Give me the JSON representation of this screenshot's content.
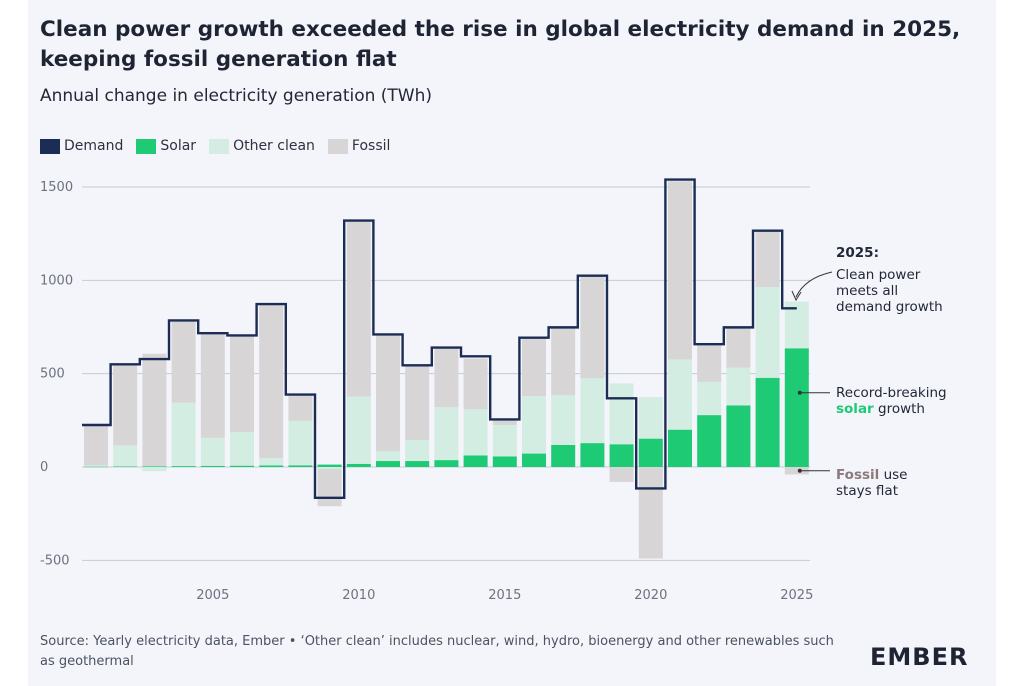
{
  "title": "Clean power growth exceeded the rise in global electricity demand in 2025, keeping fossil generation flat",
  "subtitle": "Annual change in electricity generation (TWh)",
  "legend": {
    "demand": "Demand",
    "solar": "Solar",
    "other_clean": "Other clean",
    "fossil": "Fossil"
  },
  "colors": {
    "demand": "#1c2d55",
    "solar": "#1ecb74",
    "other_clean": "#d3ede2",
    "fossil": "#d8d5d6",
    "grid": "#c7cad4",
    "fossil_text": "#8b7a7a",
    "solar_text": "#1ecb74"
  },
  "annotations": {
    "a2025_title": "2025:",
    "a2025_line1": "Clean power",
    "a2025_line2": "meets all",
    "a2025_line3": "demand growth",
    "solar_line1": "Record-breaking",
    "solar_word": "solar",
    "solar_rest": " growth",
    "fossil_word": "Fossil",
    "fossil_rest": " use",
    "fossil_line2": "stays flat"
  },
  "source": "Source: Yearly electricity data, Ember • ‘Other clean’ includes nuclear, wind, hydro, bioenergy and other renewables such as geothermal",
  "logo": "EMBER",
  "chart_data": {
    "type": "bar",
    "stacked": true,
    "title": "Annual change in electricity generation (TWh)",
    "ylim": [
      -500,
      1500
    ],
    "yticks": [
      -500,
      0,
      500,
      1000,
      1500
    ],
    "ytick_labels": [
      "-500",
      "0",
      "500",
      "1000",
      "1500"
    ],
    "xticks": [
      2005,
      2010,
      2015,
      2020,
      2025
    ],
    "xtick_labels": [
      "2005",
      "2010",
      "2015",
      "2020",
      "2025"
    ],
    "grid": true,
    "x": [
      2001,
      2002,
      2003,
      2004,
      2005,
      2006,
      2007,
      2008,
      2009,
      2010,
      2011,
      2012,
      2013,
      2014,
      2015,
      2016,
      2017,
      2018,
      2019,
      2020,
      2021,
      2022,
      2023,
      2024,
      2025
    ],
    "series": [
      {
        "name": "Solar",
        "values": [
          2,
          3,
          4,
          5,
          6,
          7,
          8,
          9,
          13,
          17,
          32,
          32,
          37,
          62,
          57,
          72,
          118,
          128,
          122,
          152,
          200,
          278,
          330,
          478,
          636
        ]
      },
      {
        "name": "Other clean",
        "values": [
          8,
          113,
          -22,
          340,
          150,
          180,
          40,
          238,
          -10,
          360,
          53,
          112,
          283,
          247,
          168,
          308,
          268,
          347,
          326,
          223,
          376,
          178,
          203,
          486,
          250
        ]
      },
      {
        "name": "Fossil",
        "values": [
          215,
          432,
          603,
          440,
          565,
          515,
          820,
          140,
          -200,
          945,
          625,
          398,
          322,
          272,
          30,
          313,
          360,
          550,
          -80,
          -490,
          955,
          205,
          217,
          300,
          -40
        ]
      },
      {
        "name": "Demand",
        "type": "step",
        "values": [
          225,
          550,
          578,
          785,
          717,
          705,
          873,
          388,
          -165,
          1320,
          710,
          545,
          640,
          593,
          255,
          693,
          748,
          1025,
          368,
          -115,
          1540,
          658,
          748,
          1266,
          850
        ]
      }
    ]
  }
}
